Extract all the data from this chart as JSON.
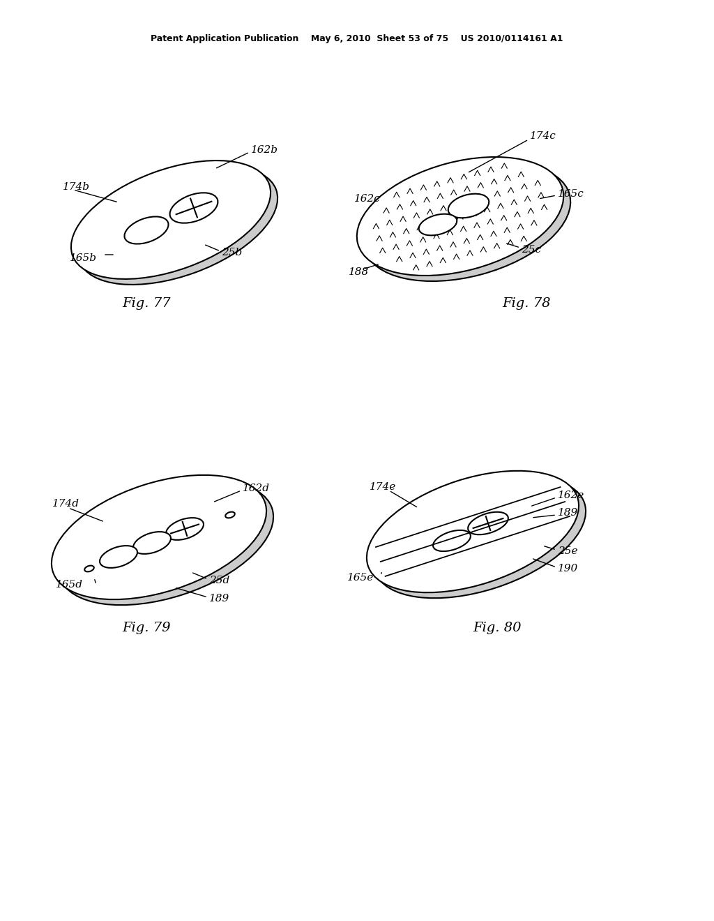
{
  "bg_color": "#ffffff",
  "header_text": "Patent Application Publication    May 6, 2010  Sheet 53 of 75    US 2010/0114161 A1",
  "fig77_label": "Fig. 77",
  "fig78_label": "Fig. 78",
  "fig79_label": "Fig. 79",
  "fig80_label": "Fig. 80",
  "line_color": "#000000",
  "line_width": 1.5,
  "font_size_label": 11,
  "font_size_fig": 14
}
